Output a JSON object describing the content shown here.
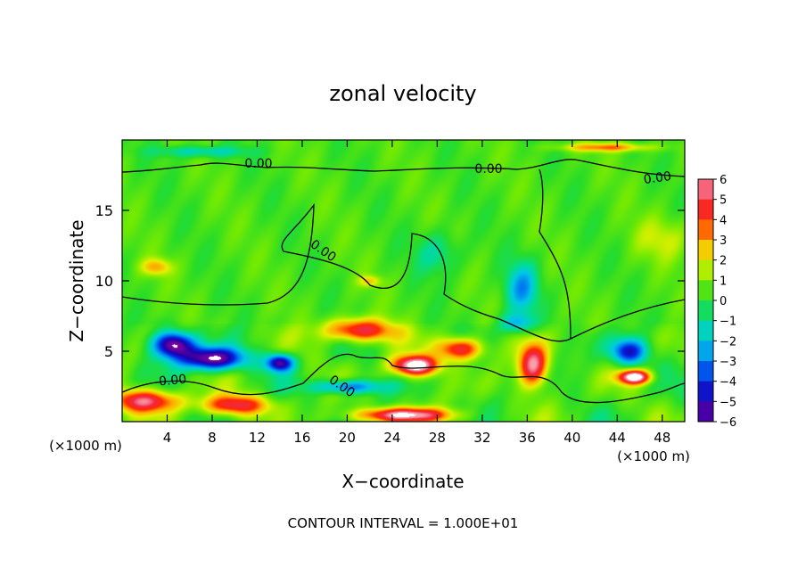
{
  "chart_data": {
    "type": "heatmap",
    "title": "zonal velocity",
    "xlabel": "X−coordinate",
    "ylabel": "Z−coordinate",
    "x_unit_left": "(×1000 m)",
    "x_unit_right": "(×1000 m)",
    "xlim": [
      0,
      50
    ],
    "ylim": [
      0,
      20
    ],
    "x_ticks": [
      4,
      8,
      12,
      16,
      20,
      24,
      28,
      32,
      36,
      40,
      44,
      48
    ],
    "y_ticks": [
      5,
      10,
      15
    ],
    "colorbar": {
      "range": [
        -6,
        6
      ],
      "ticks": [
        "6",
        "5",
        "4",
        "3",
        "2",
        "1",
        "0",
        "−1",
        "−2",
        "−3",
        "−4",
        "−5",
        "−6"
      ]
    },
    "contour_labels": [
      "0.00",
      "0.00",
      "0.00",
      "0.00",
      "0.00",
      "0.00"
    ],
    "footer": "CONTOUR INTERVAL = 1.000E+01",
    "features": [
      {
        "x": 4.5,
        "z": 5.5,
        "v": -7,
        "sx": 1.8,
        "sz": 0.9
      },
      {
        "x": 8,
        "z": 4.5,
        "v": -7,
        "sx": 2.8,
        "sz": 0.8
      },
      {
        "x": 14,
        "z": 4.2,
        "v": -6,
        "sx": 1.2,
        "sz": 0.6
      },
      {
        "x": 2,
        "z": 1.5,
        "v": 5,
        "sx": 3,
        "sz": 0.8
      },
      {
        "x": 10,
        "z": 1.2,
        "v": 4.5,
        "sx": 3,
        "sz": 0.7
      },
      {
        "x": 21,
        "z": 6.5,
        "v": 5,
        "sx": 3,
        "sz": 0.8
      },
      {
        "x": 26,
        "z": 4,
        "v": 7,
        "sx": 2,
        "sz": 0.7
      },
      {
        "x": 30,
        "z": 5.2,
        "v": 5,
        "sx": 2,
        "sz": 0.8
      },
      {
        "x": 36.5,
        "z": 4,
        "v": 5.5,
        "sx": 1.3,
        "sz": 1.5
      },
      {
        "x": 45,
        "z": 5,
        "v": -5,
        "sx": 1.6,
        "sz": 0.9
      },
      {
        "x": 45.5,
        "z": 3.2,
        "v": 7,
        "sx": 1.4,
        "sz": 0.5
      },
      {
        "x": 35.5,
        "z": 9.5,
        "v": -3,
        "sx": 1.4,
        "sz": 1.8
      },
      {
        "x": 25,
        "z": 0.5,
        "v": 6,
        "sx": 4,
        "sz": 0.5
      },
      {
        "x": 3,
        "z": 11,
        "v": 2.5,
        "sx": 1.3,
        "sz": 0.6
      },
      {
        "x": 7,
        "z": 19.2,
        "v": -2,
        "sx": 4,
        "sz": 0.4
      },
      {
        "x": 35,
        "z": 7,
        "v": -2.5,
        "sx": 1.5,
        "sz": 0.7
      },
      {
        "x": 20,
        "z": 2.5,
        "v": -4,
        "sx": 3,
        "sz": 0.5
      },
      {
        "x": 48,
        "z": 13,
        "v": 1.3,
        "sx": 2.5,
        "sz": 1.5
      },
      {
        "x": 28,
        "z": 12,
        "v": -1.5,
        "sx": 2,
        "sz": 1.5
      },
      {
        "x": 22,
        "z": 10,
        "v": 2,
        "sx": 1,
        "sz": 0.4
      },
      {
        "x": 43,
        "z": 19.5,
        "v": 3,
        "sx": 4,
        "sz": 0.3
      }
    ]
  }
}
